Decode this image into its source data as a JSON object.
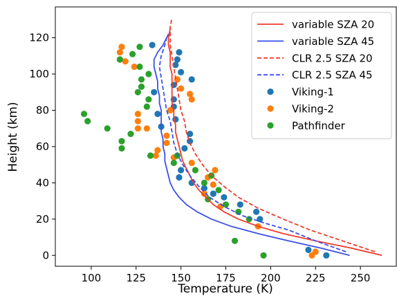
{
  "chart_data": {
    "type": "line",
    "title": "",
    "xlabel": "Temperature (K)",
    "ylabel": "Height (km)",
    "xlim": [
      80,
      270
    ],
    "ylim": [
      -6,
      137
    ],
    "x_ticks": [
      100,
      125,
      150,
      175,
      200,
      225,
      250
    ],
    "y_ticks": [
      0,
      20,
      40,
      60,
      80,
      100,
      120
    ],
    "x_tick_labels": [
      "100",
      "125",
      "150",
      "175",
      "200",
      "225",
      "250"
    ],
    "y_tick_labels": [
      "0",
      "20",
      "40",
      "60",
      "80",
      "100",
      "120"
    ],
    "grid": false,
    "legend": "top-right",
    "series": [
      {
        "name": "variable SZA 20",
        "kind": "line",
        "style": "solid",
        "color": "#ef3b2c",
        "points": [
          [
            262,
            0
          ],
          [
            245,
            4
          ],
          [
            225,
            8
          ],
          [
            207,
            12
          ],
          [
            193,
            16
          ],
          [
            182,
            20
          ],
          [
            174,
            24
          ],
          [
            168,
            28
          ],
          [
            164,
            32
          ],
          [
            160,
            36
          ],
          [
            157,
            40
          ],
          [
            155,
            44
          ],
          [
            153,
            48
          ],
          [
            151,
            52
          ],
          [
            150,
            56
          ],
          [
            149,
            60
          ],
          [
            148,
            64
          ],
          [
            147,
            68
          ],
          [
            147,
            72
          ],
          [
            146,
            76
          ],
          [
            146,
            80
          ],
          [
            145,
            84
          ],
          [
            145,
            88
          ],
          [
            145,
            92
          ],
          [
            145,
            96
          ],
          [
            145,
            100
          ],
          [
            144,
            104
          ],
          [
            144,
            108
          ],
          [
            144,
            112
          ],
          [
            143,
            116
          ],
          [
            143,
            120
          ],
          [
            144,
            125
          ]
        ]
      },
      {
        "name": "variable SZA 45",
        "kind": "line",
        "style": "solid",
        "color": "#3a4fe8",
        "points": [
          [
            244,
            0
          ],
          [
            228,
            4
          ],
          [
            210,
            8
          ],
          [
            193,
            12
          ],
          [
            178,
            16
          ],
          [
            167,
            20
          ],
          [
            159,
            24
          ],
          [
            153,
            28
          ],
          [
            149,
            32
          ],
          [
            146,
            36
          ],
          [
            144,
            40
          ],
          [
            143,
            44
          ],
          [
            142,
            48
          ],
          [
            141,
            52
          ],
          [
            141,
            56
          ],
          [
            140,
            60
          ],
          [
            140,
            64
          ],
          [
            139,
            68
          ],
          [
            139,
            72
          ],
          [
            139,
            76
          ],
          [
            139,
            80
          ],
          [
            138,
            84
          ],
          [
            138,
            88
          ],
          [
            137,
            92
          ],
          [
            137,
            96
          ],
          [
            136,
            100
          ],
          [
            135,
            104
          ],
          [
            135,
            108
          ],
          [
            137,
            112
          ],
          [
            140,
            116
          ],
          [
            142,
            120
          ],
          [
            143,
            122
          ]
        ]
      },
      {
        "name": "CLR 2.5 SZA 20",
        "kind": "line",
        "style": "dashed",
        "color": "#ef3b2c",
        "points": [
          [
            258,
            2
          ],
          [
            240,
            8
          ],
          [
            222,
            14
          ],
          [
            207,
            20
          ],
          [
            193,
            26
          ],
          [
            182,
            32
          ],
          [
            174,
            38
          ],
          [
            167,
            44
          ],
          [
            162,
            50
          ],
          [
            158,
            56
          ],
          [
            155,
            62
          ],
          [
            153,
            68
          ],
          [
            152,
            74
          ],
          [
            150,
            80
          ],
          [
            149,
            86
          ],
          [
            148,
            92
          ],
          [
            147,
            98
          ],
          [
            146,
            104
          ],
          [
            145,
            110
          ],
          [
            144,
            116
          ],
          [
            144,
            120
          ],
          [
            144,
            126
          ],
          [
            145,
            131
          ]
        ]
      },
      {
        "name": "CLR 2.5 SZA 45",
        "kind": "line",
        "style": "dashed",
        "color": "#3a4fe8",
        "points": [
          [
            242,
            2
          ],
          [
            225,
            8
          ],
          [
            210,
            14
          ],
          [
            196,
            18
          ],
          [
            184,
            22
          ],
          [
            174,
            27
          ],
          [
            166,
            32
          ],
          [
            160,
            38
          ],
          [
            155,
            44
          ],
          [
            151,
            50
          ],
          [
            148,
            56
          ],
          [
            146,
            62
          ],
          [
            145,
            68
          ],
          [
            144,
            74
          ],
          [
            142,
            80
          ],
          [
            141,
            86
          ],
          [
            140,
            92
          ],
          [
            139,
            98
          ],
          [
            138,
            104
          ],
          [
            139,
            110
          ],
          [
            141,
            116
          ],
          [
            142,
            120
          ]
        ]
      },
      {
        "name": "Viking-1",
        "kind": "scatter",
        "color": "#1f77b4",
        "points": [
          [
            231,
            0
          ],
          [
            221,
            3
          ],
          [
            194,
            20
          ],
          [
            192,
            24
          ],
          [
            183,
            28
          ],
          [
            174,
            32
          ],
          [
            168,
            34
          ],
          [
            163,
            37
          ],
          [
            156,
            40
          ],
          [
            149,
            43
          ],
          [
            150,
            47
          ],
          [
            152,
            59
          ],
          [
            155,
            63
          ],
          [
            155,
            67
          ],
          [
            139,
            71
          ],
          [
            147,
            75
          ],
          [
            137,
            78
          ],
          [
            146,
            82
          ],
          [
            146,
            86
          ],
          [
            135,
            90
          ],
          [
            146,
            94
          ],
          [
            156,
            97
          ],
          [
            150,
            101
          ],
          [
            147,
            105
          ],
          [
            148,
            108
          ],
          [
            149,
            112
          ],
          [
            134,
            116
          ]
        ]
      },
      {
        "name": "Viking-2",
        "kind": "scatter",
        "color": "#ff7f0e",
        "points": [
          [
            223,
            0
          ],
          [
            225,
            2
          ],
          [
            193,
            16
          ],
          [
            172,
            27
          ],
          [
            163,
            34
          ],
          [
            168,
            39
          ],
          [
            169,
            47
          ],
          [
            165,
            43
          ],
          [
            156,
            51
          ],
          [
            146,
            54
          ],
          [
            136,
            55
          ],
          [
            137,
            58
          ],
          [
            142,
            62
          ],
          [
            142,
            66
          ],
          [
            126,
            70
          ],
          [
            131,
            70
          ],
          [
            126,
            74
          ],
          [
            126,
            78
          ],
          [
            144,
            80
          ],
          [
            156,
            86
          ],
          [
            155,
            89
          ],
          [
            150,
            92
          ],
          [
            148,
            97
          ],
          [
            124,
            104
          ],
          [
            119,
            107
          ],
          [
            116,
            108
          ],
          [
            116,
            112
          ],
          [
            117,
            115
          ]
        ]
      },
      {
        "name": "Pathfinder",
        "kind": "scatter",
        "color": "#2ca02c",
        "points": [
          [
            196,
            0
          ],
          [
            180,
            8
          ],
          [
            188,
            20
          ],
          [
            182,
            24
          ],
          [
            175,
            28
          ],
          [
            165,
            31
          ],
          [
            171,
            36
          ],
          [
            163,
            40
          ],
          [
            167,
            44
          ],
          [
            158,
            47
          ],
          [
            146,
            51
          ],
          [
            148,
            55
          ],
          [
            133,
            55
          ],
          [
            117,
            59
          ],
          [
            117,
            63
          ],
          [
            122,
            67
          ],
          [
            109,
            70
          ],
          [
            98,
            74
          ],
          [
            96,
            78
          ],
          [
            131,
            82
          ],
          [
            132,
            86
          ],
          [
            126,
            90
          ],
          [
            128,
            93
          ],
          [
            128,
            97
          ],
          [
            132,
            100
          ],
          [
            127,
            104
          ],
          [
            116,
            108
          ],
          [
            123,
            111
          ],
          [
            127,
            115
          ]
        ]
      }
    ]
  }
}
